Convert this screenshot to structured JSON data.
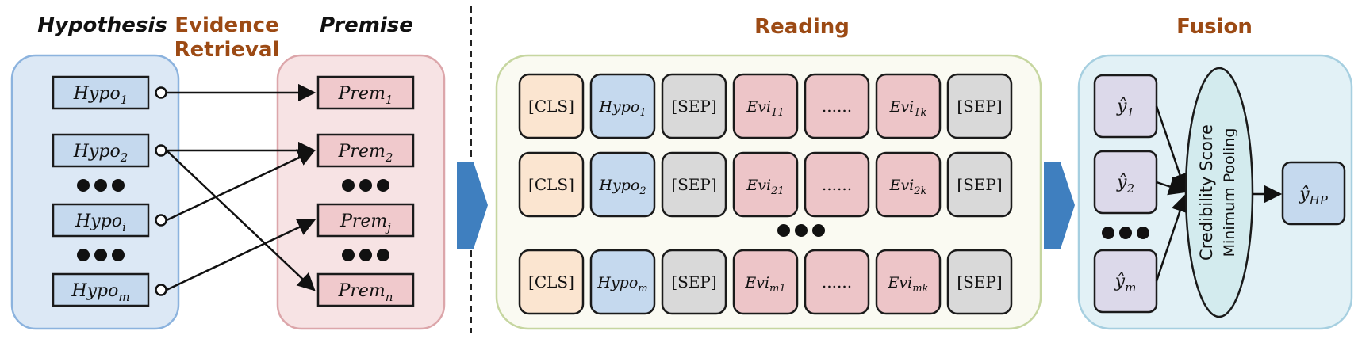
{
  "titles": {
    "hypothesis": "Hypothesis",
    "retrieval_line1": "Evidence",
    "retrieval_line2": "Retrieval",
    "premise": "Premise",
    "reading": "Reading",
    "fusion": "Fusion"
  },
  "hypotheses": [
    {
      "base": "Hypo",
      "sub": "1"
    },
    {
      "base": "Hypo",
      "sub": "2"
    },
    {
      "base": "Hypo",
      "sub": "i"
    },
    {
      "base": "Hypo",
      "sub": "m"
    }
  ],
  "premises": [
    {
      "base": "Prem",
      "sub": "1"
    },
    {
      "base": "Prem",
      "sub": "2"
    },
    {
      "base": "Prem",
      "sub": "j"
    },
    {
      "base": "Prem",
      "sub": "n"
    }
  ],
  "reading_rows": [
    {
      "cls": "[CLS]",
      "hypo_base": "Hypo",
      "hypo_sub": "1",
      "sep1": "[SEP]",
      "evi_a_base": "Evi",
      "evi_a_sub": "11",
      "dots": "......",
      "evi_b_base": "Evi",
      "evi_b_sub": "1k",
      "sep2": "[SEP]"
    },
    {
      "cls": "[CLS]",
      "hypo_base": "Hypo",
      "hypo_sub": "2",
      "sep1": "[SEP]",
      "evi_a_base": "Evi",
      "evi_a_sub": "21",
      "dots": "......",
      "evi_b_base": "Evi",
      "evi_b_sub": "2k",
      "sep2": "[SEP]"
    },
    {
      "cls": "[CLS]",
      "hypo_base": "Hypo",
      "hypo_sub": "m",
      "sep1": "[SEP]",
      "evi_a_base": "Evi",
      "evi_a_sub": "m1",
      "dots": "......",
      "evi_b_base": "Evi",
      "evi_b_sub": "mk",
      "sep2": "[SEP]"
    }
  ],
  "predictions": [
    {
      "base": "ŷ",
      "sub": "1"
    },
    {
      "base": "ŷ",
      "sub": "2"
    },
    {
      "base": "ŷ",
      "sub": "m"
    }
  ],
  "fusion": {
    "line1": "Credibility Score",
    "line2": "Minimum Pooling",
    "output_base": "ŷ",
    "output_sub": "HP"
  },
  "colors": {
    "hypothesis_panel": "#dce8f5",
    "hypothesis_box": "#c5d9ee",
    "premise_panel": "#f7e3e4",
    "premise_box": "#f0c9cc",
    "reading_panel": "#fafaf2",
    "fusion_panel": "#e2f1f6",
    "cls_token": "#fbe5d0",
    "sep_token": "#d9d9d9",
    "evidence_token": "#edc5c8",
    "prediction_box": "#dcd9ea",
    "pooling_ellipse": "#d3ebee",
    "arrow_fill": "#3f7fbf",
    "title_brown": "#9c4a14"
  }
}
